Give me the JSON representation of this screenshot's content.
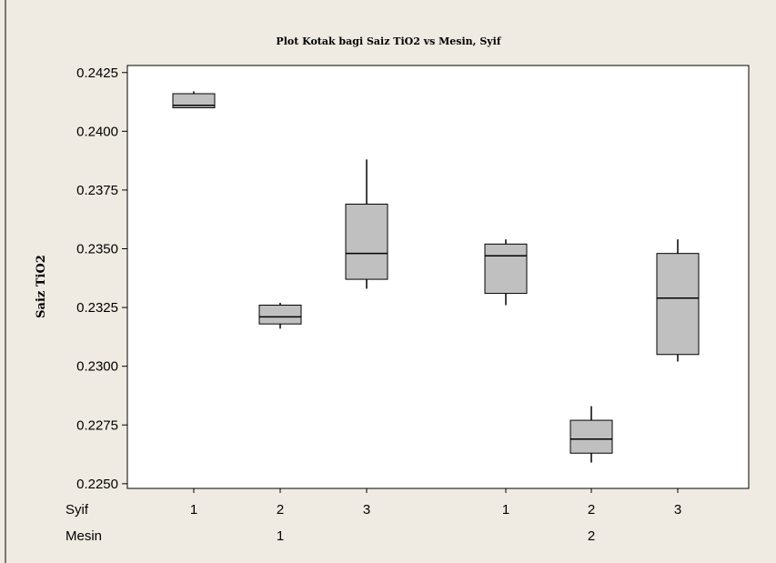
{
  "chart_data": {
    "type": "box",
    "title": "Plot Kotak bagi Saiz TiO2 vs Mesin, Syif",
    "ylabel": "Saiz TiO2",
    "ylim": [
      0.2248,
      0.2428
    ],
    "yticks": [
      "0.2250",
      "0.2275",
      "0.2300",
      "0.2325",
      "0.2350",
      "0.2375",
      "0.2400",
      "0.2425"
    ],
    "grid": false,
    "colors": {
      "background": "#f0ebe2",
      "plot_area": "#ffffff",
      "box_fill": "#c0c0c0",
      "line": "#000000"
    },
    "x_levels": [
      {
        "name": "Syif",
        "labels": [
          "1",
          "2",
          "3",
          "1",
          "2",
          "3"
        ]
      },
      {
        "name": "Mesin",
        "labels": [
          "1",
          "2"
        ]
      }
    ],
    "boxes": [
      {
        "mesin": "1",
        "syif": "1",
        "min": 0.241,
        "q1": 0.241,
        "median": 0.2411,
        "q3": 0.2416,
        "max": 0.2417
      },
      {
        "mesin": "1",
        "syif": "2",
        "min": 0.2316,
        "q1": 0.2318,
        "median": 0.2321,
        "q3": 0.2326,
        "max": 0.2327
      },
      {
        "mesin": "1",
        "syif": "3",
        "min": 0.2333,
        "q1": 0.2337,
        "median": 0.2348,
        "q3": 0.2369,
        "max": 0.2388
      },
      {
        "mesin": "2",
        "syif": "1",
        "min": 0.2326,
        "q1": 0.2331,
        "median": 0.2347,
        "q3": 0.2352,
        "max": 0.2354
      },
      {
        "mesin": "2",
        "syif": "2",
        "min": 0.2259,
        "q1": 0.2263,
        "median": 0.2269,
        "q3": 0.2277,
        "max": 0.2283
      },
      {
        "mesin": "2",
        "syif": "3",
        "min": 0.2302,
        "q1": 0.2305,
        "median": 0.2329,
        "q3": 0.2348,
        "max": 0.2354
      }
    ]
  }
}
